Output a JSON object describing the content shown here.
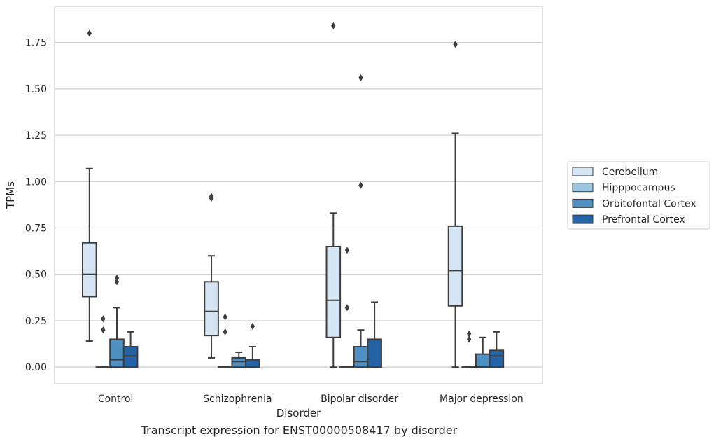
{
  "caption": "Transcript expression for ENST00000508417 by disorder",
  "chart_data": {
    "type": "box",
    "xlabel": "Disorder",
    "ylabel": "TPMs",
    "ylim": [
      -0.09,
      1.945
    ],
    "yticks": [
      0.0,
      0.25,
      0.5,
      0.75,
      1.0,
      1.25,
      1.5,
      1.75
    ],
    "yticklabels": [
      "0.00",
      "0.25",
      "0.50",
      "0.75",
      "1.00",
      "1.25",
      "1.50",
      "1.75"
    ],
    "grid": true,
    "legend_position": "right",
    "categories": [
      "Control",
      "Schizophrenia",
      "Bipolar disorder",
      "Major depression"
    ],
    "series": [
      {
        "name": "Cerebellum",
        "color": "#d6e5f4",
        "boxes": [
          {
            "q1": 0.38,
            "median": 0.5,
            "q3": 0.67,
            "whislo": 0.14,
            "whishi": 1.07,
            "fliers": [
              1.8
            ]
          },
          {
            "q1": 0.17,
            "median": 0.3,
            "q3": 0.46,
            "whislo": 0.05,
            "whishi": 0.6,
            "fliers": [
              0.91,
              0.92
            ]
          },
          {
            "q1": 0.16,
            "median": 0.36,
            "q3": 0.65,
            "whislo": 0.0,
            "whishi": 0.83,
            "fliers": [
              1.84
            ]
          },
          {
            "q1": 0.33,
            "median": 0.52,
            "q3": 0.76,
            "whislo": 0.0,
            "whishi": 1.26,
            "fliers": [
              1.74
            ]
          }
        ]
      },
      {
        "name": "Hipppocampus",
        "color": "#9bc5e0",
        "boxes": [
          {
            "q1": 0.0,
            "median": 0.0,
            "q3": 0.0,
            "whislo": 0.0,
            "whishi": 0.0,
            "fliers": [
              0.2,
              0.26
            ]
          },
          {
            "q1": 0.0,
            "median": 0.0,
            "q3": 0.0,
            "whislo": 0.0,
            "whishi": 0.0,
            "fliers": [
              0.19,
              0.27
            ]
          },
          {
            "q1": 0.0,
            "median": 0.0,
            "q3": 0.0,
            "whislo": 0.0,
            "whishi": 0.0,
            "fliers": [
              0.32,
              0.63
            ]
          },
          {
            "q1": 0.0,
            "median": 0.0,
            "q3": 0.0,
            "whislo": 0.0,
            "whishi": 0.0,
            "fliers": [
              0.15,
              0.18
            ]
          }
        ]
      },
      {
        "name": "Orbitofontal Cortex",
        "color": "#4f90c2",
        "boxes": [
          {
            "q1": 0.0,
            "median": 0.04,
            "q3": 0.15,
            "whislo": 0.0,
            "whishi": 0.32,
            "fliers": [
              0.46,
              0.48
            ]
          },
          {
            "q1": 0.0,
            "median": 0.03,
            "q3": 0.05,
            "whislo": 0.0,
            "whishi": 0.08,
            "fliers": []
          },
          {
            "q1": 0.0,
            "median": 0.03,
            "q3": 0.11,
            "whislo": 0.0,
            "whishi": 0.2,
            "fliers": [
              0.98,
              1.56
            ]
          },
          {
            "q1": 0.0,
            "median": 0.0,
            "q3": 0.07,
            "whislo": 0.0,
            "whishi": 0.16,
            "fliers": []
          }
        ]
      },
      {
        "name": "Prefrontal Cortex",
        "color": "#2463a6",
        "boxes": [
          {
            "q1": 0.0,
            "median": 0.06,
            "q3": 0.11,
            "whislo": 0.0,
            "whishi": 0.19,
            "fliers": []
          },
          {
            "q1": 0.0,
            "median": 0.0,
            "q3": 0.04,
            "whislo": 0.0,
            "whishi": 0.11,
            "fliers": [
              0.22
            ]
          },
          {
            "q1": 0.0,
            "median": 0.0,
            "q3": 0.15,
            "whislo": 0.0,
            "whishi": 0.35,
            "fliers": []
          },
          {
            "q1": 0.0,
            "median": 0.06,
            "q3": 0.09,
            "whislo": 0.0,
            "whishi": 0.19,
            "fliers": []
          }
        ]
      }
    ]
  }
}
